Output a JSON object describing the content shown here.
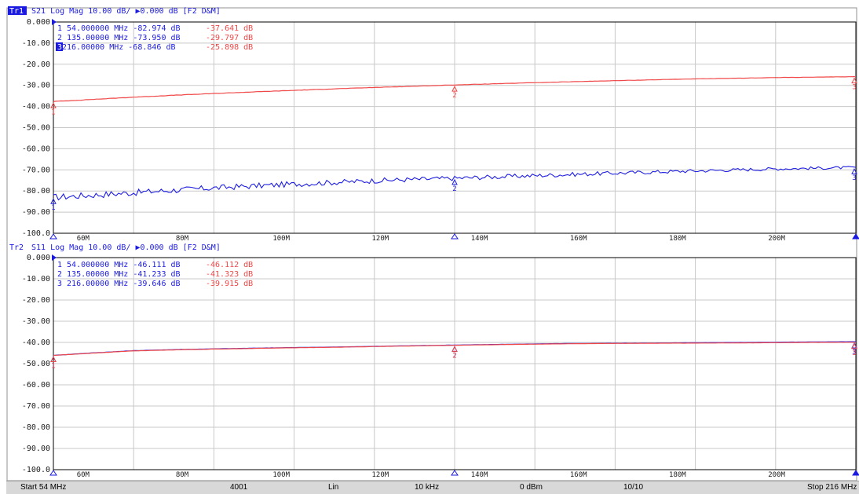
{
  "colors": {
    "trace_primary": "#2020e0",
    "trace_memory": "#f04848",
    "grid": "#c8c8c8",
    "frame": "#000000",
    "header_text": "#1a1ae0"
  },
  "chart_data": [
    {
      "type": "line",
      "trace_id": "Tr1",
      "title": "S21 Log Mag 10.00 dB/ ▶0.000 dB [F2 D&M]",
      "ylim": [
        -100,
        0
      ],
      "xlim": [
        54,
        216
      ],
      "x_unit": "MHz",
      "y_tick_labels": [
        "0.000",
        "-10.00",
        "-20.00",
        "-30.00",
        "-40.00",
        "-50.00",
        "-60.00",
        "-70.00",
        "-80.00",
        "-90.00",
        "-100.0"
      ],
      "x_tick_labels": [
        "60M",
        "80M",
        "100M",
        "120M",
        "140M",
        "160M",
        "180M",
        "200M"
      ],
      "x_ticks": [
        60,
        80,
        100,
        120,
        140,
        160,
        180,
        200
      ],
      "grid": true,
      "series": [
        {
          "x": [
            54,
            60,
            70,
            80,
            90,
            100,
            110,
            120,
            135,
            150,
            165,
            180,
            200,
            216
          ],
          "y": [
            -82.974,
            -82.2,
            -80.8,
            -79.4,
            -78.1,
            -77.0,
            -76.0,
            -75.0,
            -73.95,
            -72.8,
            -71.7,
            -70.7,
            -69.5,
            -68.846
          ],
          "noise": 1.6
        },
        {
          "x": [
            54,
            60,
            70,
            80,
            90,
            100,
            110,
            120,
            135,
            150,
            165,
            180,
            200,
            216
          ],
          "y": [
            -37.641,
            -36.9,
            -35.6,
            -34.5,
            -33.5,
            -32.6,
            -31.7,
            -30.9,
            -29.797,
            -28.8,
            -27.9,
            -27.1,
            -26.3,
            -25.898
          ],
          "noise": 0.1
        }
      ],
      "markers": [
        {
          "id": "1",
          "row": "1  54.000000 MHz -82.974 dB",
          "mem": "-37.641 dB",
          "active": false
        },
        {
          "id": "2",
          "row": "2  135.00000 MHz -73.950 dB",
          "mem": "-29.797 dB",
          "active": false
        },
        {
          "id": "3",
          "row": " 216.00000 MHz -68.846 dB",
          "mem": "-25.898 dB",
          "active": true
        }
      ]
    },
    {
      "type": "line",
      "trace_id": "Tr2",
      "title": "S11 Log Mag 10.00 dB/ ▶0.000 dB [F2 D&M]",
      "ylim": [
        -100,
        0
      ],
      "xlim": [
        54,
        216
      ],
      "x_unit": "MHz",
      "y_tick_labels": [
        "0.000",
        "-10.00",
        "-20.00",
        "-30.00",
        "-40.00",
        "-50.00",
        "-60.00",
        "-70.00",
        "-80.00",
        "-90.00",
        "-100.0"
      ],
      "x_tick_labels": [
        "60M",
        "80M",
        "100M",
        "120M",
        "140M",
        "160M",
        "180M",
        "200M"
      ],
      "x_ticks": [
        60,
        80,
        100,
        120,
        140,
        160,
        180,
        200
      ],
      "grid": true,
      "series": [
        {
          "x": [
            54,
            60,
            70,
            80,
            90,
            100,
            110,
            120,
            135,
            145,
            155,
            165,
            175,
            185,
            195,
            205,
            216
          ],
          "y": [
            -46.111,
            -45.2,
            -43.9,
            -43.3,
            -42.9,
            -42.5,
            -42.2,
            -41.8,
            -41.233,
            -40.9,
            -40.6,
            -40.4,
            -40.3,
            -40.1,
            -40.0,
            -39.8,
            -39.646
          ],
          "noise": 0.05
        },
        {
          "x": [
            54,
            60,
            70,
            80,
            90,
            100,
            110,
            120,
            135,
            145,
            155,
            165,
            175,
            185,
            195,
            205,
            216
          ],
          "y": [
            -46.112,
            -45.3,
            -44.0,
            -43.4,
            -43.0,
            -42.6,
            -42.3,
            -41.9,
            -41.323,
            -41.0,
            -40.7,
            -40.5,
            -40.4,
            -40.3,
            -40.2,
            -40.0,
            -39.915
          ],
          "noise": 0.05
        }
      ],
      "markers": [
        {
          "id": "1",
          "row": "1  54.000000 MHz -46.111 dB",
          "mem": "-46.112 dB",
          "active": false
        },
        {
          "id": "2",
          "row": "2  135.00000 MHz -41.233 dB",
          "mem": "-41.323 dB",
          "active": false
        },
        {
          "id": "3",
          "row": "3  216.00000 MHz -39.646 dB",
          "mem": "-39.915 dB",
          "active": false
        }
      ]
    }
  ],
  "status_bar": {
    "start": "Start 54 MHz",
    "points": "4001",
    "sweep_type": "Lin",
    "ifbw": "10 kHz",
    "power": "0 dBm",
    "avg": "10/10",
    "stop": "Stop 216 MHz"
  }
}
